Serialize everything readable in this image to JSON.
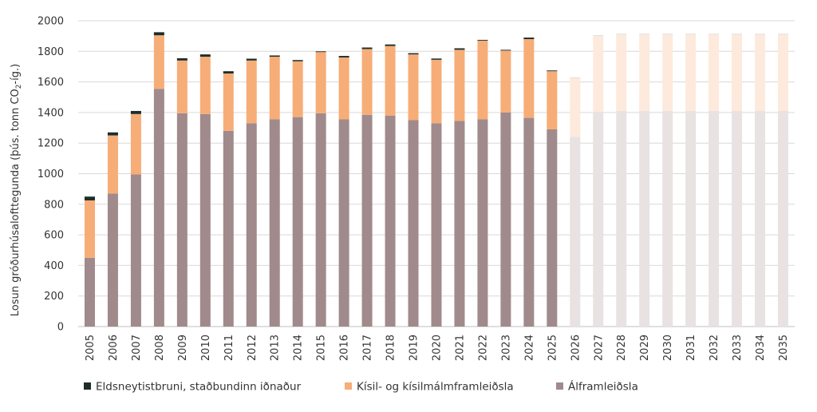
{
  "chart_data": {
    "type": "bar",
    "stacked": true,
    "ylabel_main": "Losun gróðurhúsalofttegunda (þús. tonn CO",
    "ylabel_sub": "2",
    "ylabel_end": "-íg.)",
    "ylim": [
      0,
      2000
    ],
    "yticks": [
      0,
      200,
      400,
      600,
      800,
      1000,
      1200,
      1400,
      1600,
      1800,
      2000
    ],
    "grid": true,
    "legend_position": "bottom",
    "categories": [
      "2005",
      "2006",
      "2007",
      "2008",
      "2009",
      "2010",
      "2011",
      "2012",
      "2013",
      "2014",
      "2015",
      "2016",
      "2017",
      "2018",
      "2019",
      "2020",
      "2021",
      "2022",
      "2023",
      "2024",
      "2025",
      "2026",
      "2027",
      "2028",
      "2029",
      "2030",
      "2031",
      "2032",
      "2033",
      "2034",
      "2035"
    ],
    "projection_from": "2026",
    "series": [
      {
        "name": "Álframleiðsla",
        "color": "#a08a8c",
        "projected_color": "#e8e2e2",
        "values": [
          450,
          870,
          995,
          1555,
          1395,
          1390,
          1280,
          1330,
          1355,
          1370,
          1395,
          1355,
          1385,
          1380,
          1350,
          1330,
          1345,
          1355,
          1400,
          1365,
          1290,
          1240,
          1405,
          1410,
          1410,
          1410,
          1410,
          1410,
          1410,
          1410,
          1410
        ]
      },
      {
        "name": "Kísil- og kísilmálmframleiðsla",
        "color": "#f7ad77",
        "projected_color": "#fdeadc",
        "values": [
          375,
          380,
          395,
          350,
          345,
          375,
          375,
          410,
          410,
          365,
          400,
          405,
          430,
          455,
          430,
          415,
          465,
          515,
          405,
          515,
          380,
          385,
          495,
          500,
          500,
          500,
          500,
          500,
          500,
          500,
          500
        ]
      },
      {
        "name": "Eldsneytistbruni, staðbundinn iðnaður",
        "color": "#1d2e2a",
        "projected_color": "#dcdcdc",
        "values": [
          25,
          20,
          20,
          20,
          15,
          15,
          15,
          12,
          8,
          8,
          5,
          10,
          10,
          10,
          8,
          8,
          10,
          5,
          5,
          10,
          5,
          5,
          5,
          5,
          5,
          5,
          5,
          5,
          5,
          5,
          5
        ]
      }
    ],
    "legend_order": [
      2,
      1,
      0
    ]
  }
}
